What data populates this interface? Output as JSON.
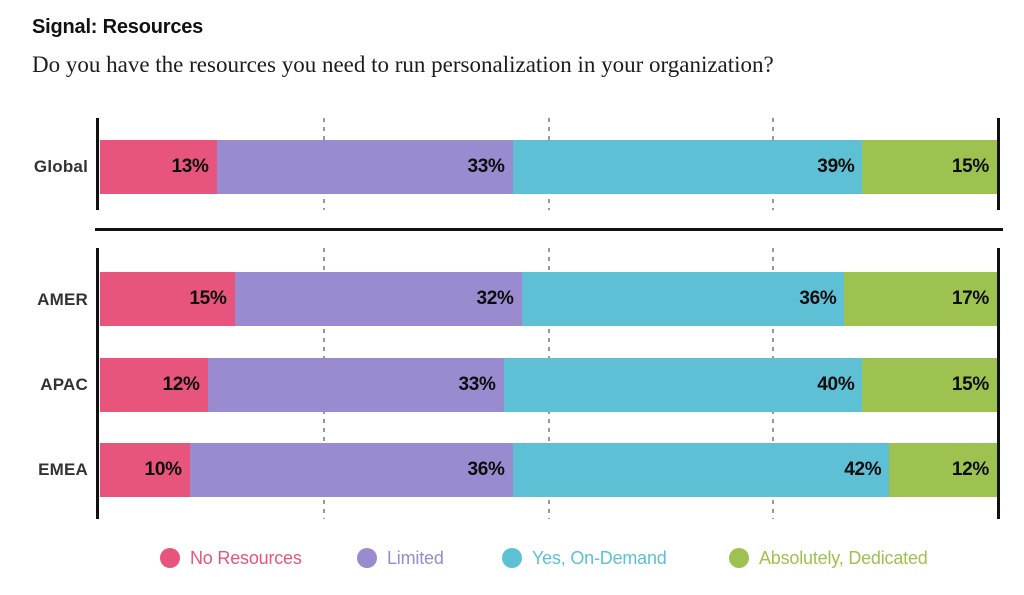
{
  "header": {
    "title": "Signal: Resources",
    "subtitle": "Do you have the resources you need to run personalization in your organization?"
  },
  "chart_data": {
    "type": "bar",
    "orientation": "horizontal",
    "stacked": true,
    "title": "Signal: Resources",
    "subtitle": "Do you have the resources you need to run personalization in your organization?",
    "categories": [
      "Global",
      "AMER",
      "APAC",
      "EMEA"
    ],
    "series": [
      {
        "name": "No Resources",
        "color": "#E8557C",
        "values": [
          13,
          15,
          12,
          10
        ]
      },
      {
        "name": "Limited",
        "color": "#9A8BD0",
        "values": [
          33,
          32,
          33,
          36
        ]
      },
      {
        "name": "Yes, On-Demand",
        "color": "#5EC0D5",
        "values": [
          39,
          36,
          40,
          42
        ]
      },
      {
        "name": "Absolutely, Dedicated",
        "color": "#9DC24F",
        "values": [
          15,
          17,
          15,
          12
        ]
      }
    ],
    "value_suffix": "%",
    "xlim": [
      0,
      100
    ],
    "gridlines_pct": [
      25,
      50,
      75
    ],
    "groups": [
      {
        "name": "global-group",
        "rows": [
          "Global"
        ]
      },
      {
        "name": "regions-group",
        "rows": [
          "AMER",
          "APAC",
          "EMEA"
        ]
      }
    ],
    "legend_position": "bottom",
    "axis_color": "#111111",
    "grid_color": "#999999",
    "value_label_color": "#0d0d0d"
  }
}
